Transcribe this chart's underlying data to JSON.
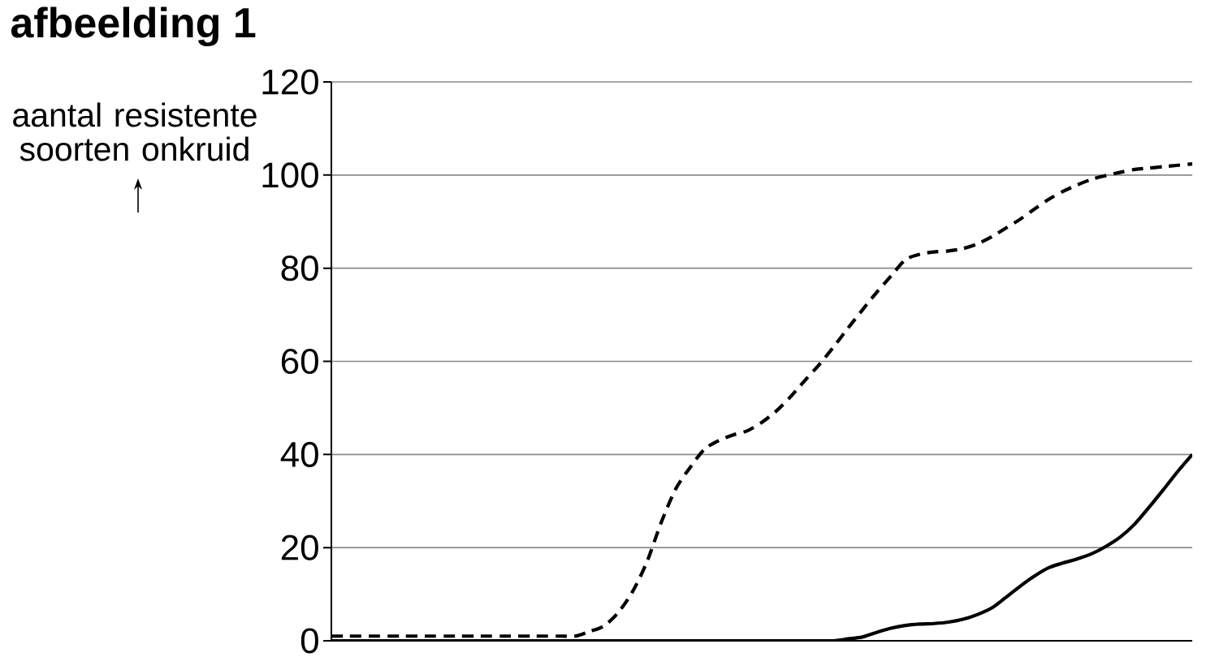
{
  "chart_data": {
    "type": "line",
    "title": "afbeelding 1",
    "ylabel": "aantal resistente soorten onkruid",
    "categories": [
      null,
      null,
      null,
      null,
      null,
      null,
      null,
      null,
      null,
      null,
      null,
      null,
      null,
      null,
      null,
      null,
      null,
      null,
      null,
      null,
      null,
      null,
      null,
      null,
      null,
      null,
      null,
      null,
      null,
      null,
      null,
      null,
      null,
      null,
      null,
      null,
      null,
      null,
      null,
      null,
      null,
      null,
      null,
      null,
      null,
      null,
      null,
      null,
      null,
      null,
      null,
      null,
      null,
      null,
      null,
      null,
      null,
      null,
      null,
      null,
      null
    ],
    "series": [
      {
        "color": "#000000",
        "line_style": "dashed",
        "values": [
          1,
          1,
          1,
          1,
          1,
          1,
          1,
          1,
          1,
          1,
          1,
          1,
          1,
          1,
          1,
          1,
          1,
          1,
          2,
          3.2,
          6.1,
          10.6,
          17,
          25.5,
          32.6,
          37.2,
          41.1,
          43,
          44.2,
          45.1,
          46.9,
          49.3,
          52.4,
          55.9,
          59.3,
          63.1,
          67.1,
          71,
          74.8,
          78.3,
          81.8,
          83,
          83.5,
          83.7,
          84.2,
          85.2,
          86.7,
          88.6,
          90.5,
          92.7,
          94.8,
          96.5,
          97.9,
          99.1,
          99.9,
          100.6,
          101.2,
          101.5,
          101.8,
          102.1,
          102.4
        ]
      },
      {
        "color": "#000000",
        "line_style": "solid",
        "values": [
          0,
          0,
          0,
          0,
          0,
          0,
          0,
          0,
          0,
          0,
          0,
          0,
          0,
          0,
          0,
          0,
          0,
          0,
          0,
          0,
          0,
          0,
          0,
          0,
          0,
          0,
          0,
          0,
          0,
          0,
          0,
          0,
          0,
          0,
          0,
          0,
          0.4,
          0.8,
          1.8,
          2.7,
          3.3,
          3.6,
          3.7,
          4,
          4.6,
          5.6,
          7,
          9.3,
          11.7,
          13.9,
          15.7,
          16.7,
          17.6,
          18.7,
          20.3,
          22.3,
          25.1,
          28.7,
          32.5,
          36.4,
          40
        ]
      }
    ],
    "ylim": [
      0,
      120
    ],
    "yticks": [
      0,
      20,
      40,
      60,
      80,
      100,
      120
    ],
    "grid": "y",
    "tick_labels": "y"
  }
}
